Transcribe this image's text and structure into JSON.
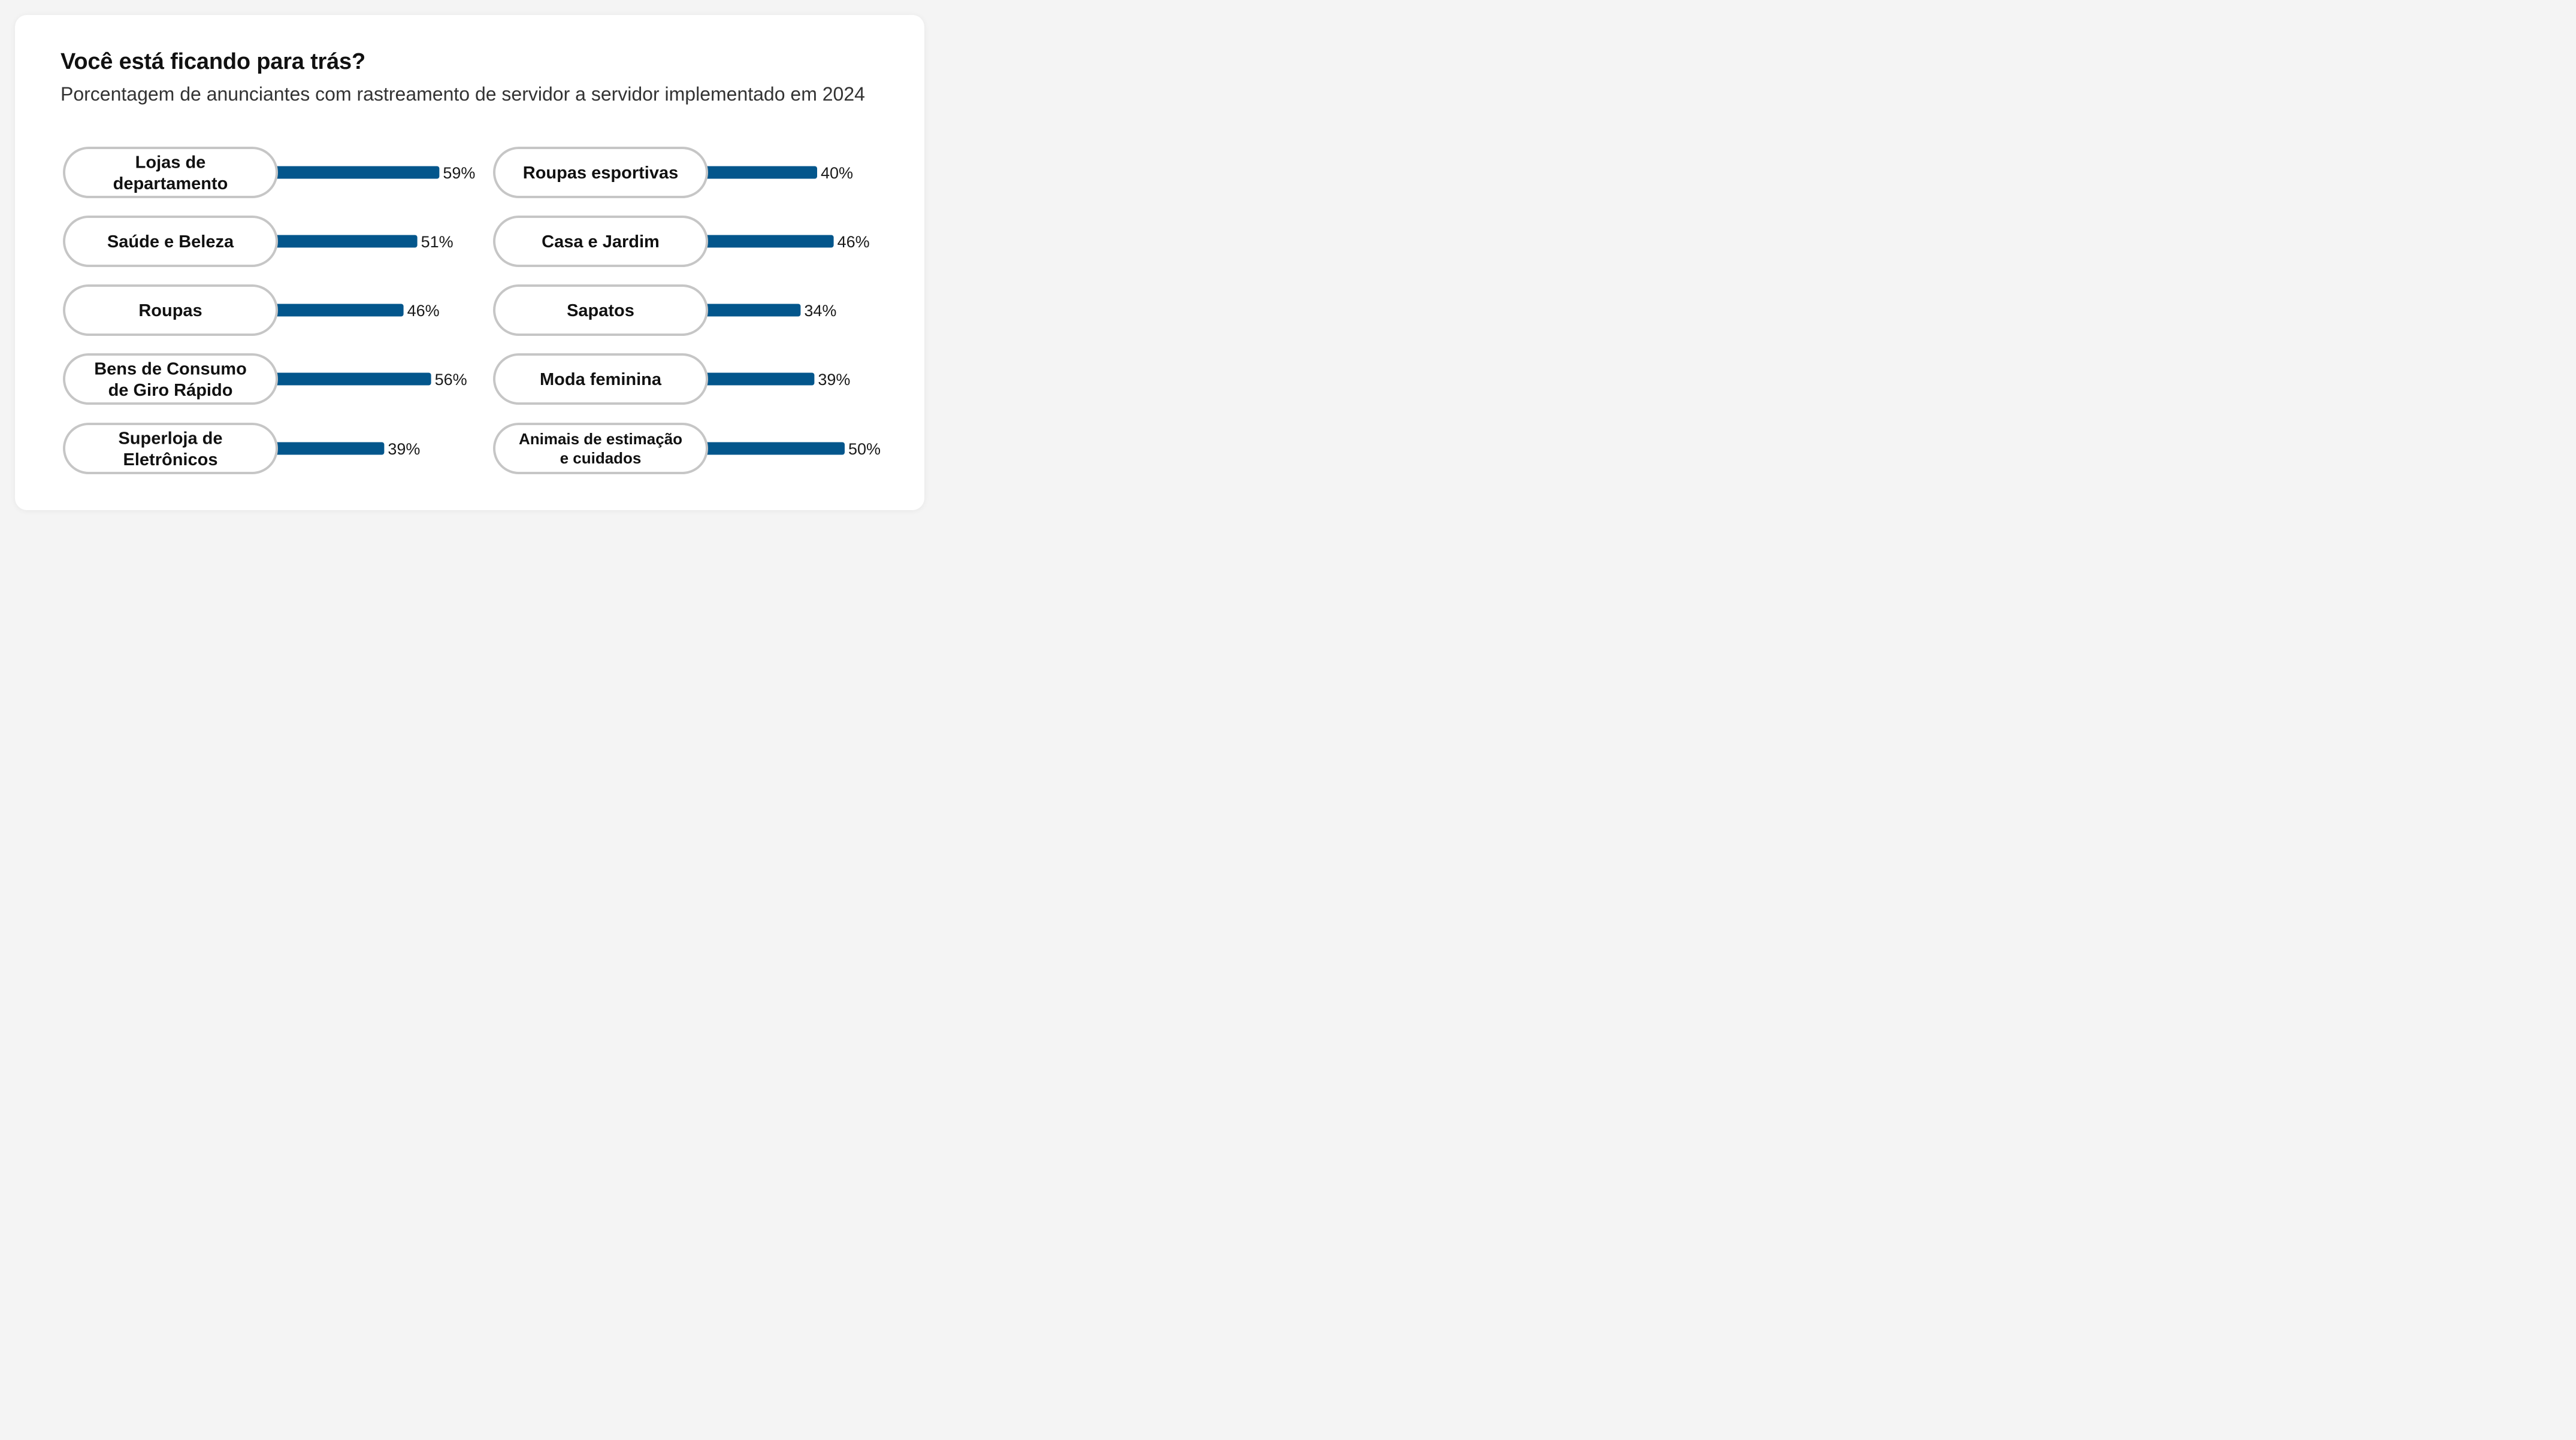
{
  "title": "Você está ficando para trás?",
  "subtitle": "Porcentagem de anunciantes com rastreamento de servidor a servidor implementado em 2024",
  "colors": {
    "bar": "#03568c",
    "pill_border": "#c6c6c6",
    "pill_fill": "#ffffff",
    "label_text": "#111111",
    "value_text": "#1a1a1a"
  },
  "chart_data": {
    "type": "bar",
    "orientation": "horizontal",
    "value_suffix": "%",
    "xlim": [
      0,
      100
    ],
    "columns": [
      {
        "categories": [
          [
            "Lojas de",
            "departamento"
          ],
          [
            "Saúde e Beleza"
          ],
          [
            "Roupas"
          ],
          [
            "Bens de Consumo",
            "de Giro Rápido"
          ],
          [
            "Superloja de",
            "Eletrônicos"
          ]
        ],
        "values": [
          59,
          51,
          46,
          56,
          39
        ],
        "value_labels": [
          "59%",
          "51%",
          "46%",
          "56%",
          "39%"
        ]
      },
      {
        "categories": [
          [
            "Roupas esportivas"
          ],
          [
            "Casa e Jardim"
          ],
          [
            "Sapatos"
          ],
          [
            "Moda feminina"
          ],
          [
            "Animais de estimação",
            "e cuidados"
          ]
        ],
        "values": [
          40,
          46,
          34,
          39,
          50
        ],
        "value_labels": [
          "40%",
          "46%",
          "34%",
          "39%",
          "50%"
        ]
      }
    ]
  }
}
